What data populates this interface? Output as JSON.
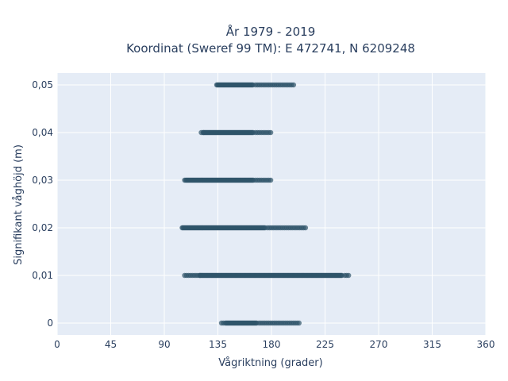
{
  "chart_data": {
    "type": "scatter",
    "title_line1": "År 1979 - 2019",
    "title_line2": "Koordinat (Sweref 99 TM): E 472741, N 6209248",
    "xlabel": "Vågriktning (grader)",
    "ylabel": "Signifikant våghöjd (m)",
    "xlim": [
      0,
      360
    ],
    "ylim": [
      -0.0025,
      0.0525
    ],
    "x_ticks": [
      0,
      45,
      90,
      135,
      180,
      225,
      270,
      315,
      360
    ],
    "x_tick_labels": [
      "0",
      "45",
      "90",
      "135",
      "180",
      "225",
      "270",
      "315",
      "360"
    ],
    "y_ticks": [
      0,
      0.01,
      0.02,
      0.03,
      0.04,
      0.05
    ],
    "y_tick_labels": [
      "0",
      "0,01",
      "0,02",
      "0,03",
      "0,04",
      "0,05"
    ],
    "grid": true,
    "marker_color": "#2f5469",
    "plot_background": "#e5ecf6",
    "series": [
      {
        "clusters": [
          {
            "y": 0.0,
            "x_dense": [
              142,
              168
            ],
            "x_sparse": [
              138,
              204
            ]
          },
          {
            "y": 0.01,
            "x_dense": [
              120,
              240
            ],
            "x_sparse": [
              107,
              246
            ]
          },
          {
            "y": 0.02,
            "x_dense": [
              105,
              175
            ],
            "x_sparse": [
              105,
              210
            ]
          },
          {
            "y": 0.03,
            "x_dense": [
              108,
              165
            ],
            "x_sparse": [
              107,
              180
            ]
          },
          {
            "y": 0.04,
            "x_dense": [
              123,
              165
            ],
            "x_sparse": [
              121,
              180
            ]
          },
          {
            "y": 0.05,
            "x_dense": [
              134,
              165
            ],
            "x_sparse": [
              134,
              199
            ]
          }
        ]
      }
    ]
  }
}
